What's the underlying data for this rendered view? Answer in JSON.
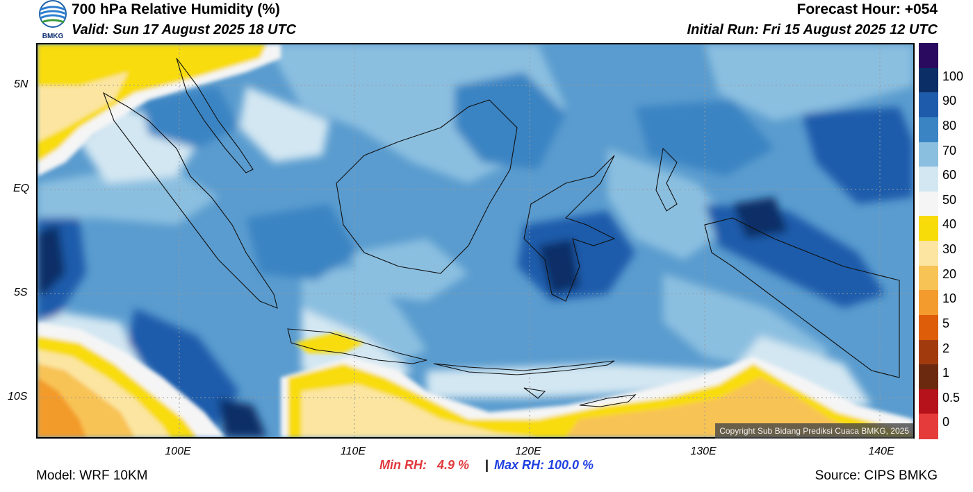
{
  "header": {
    "title": "700 hPa Relative Humidity (%)",
    "valid": "Valid: Sun 17 August 2025 18 UTC",
    "forecast_hour": "Forecast Hour: +054",
    "initial_run": "Initial Run: Fri 15 August 2025 12 UTC"
  },
  "logo": {
    "text": "BMKG",
    "icon": "bmkg-logo-icon"
  },
  "map": {
    "lat_labels": [
      "5N",
      "EQ",
      "5S",
      "10S"
    ],
    "lon_labels": [
      "100E",
      "110E",
      "120E",
      "130E",
      "140E"
    ],
    "copyright": "Copyright Sub Bidang Prediksi Cuaca BMKG, 2025"
  },
  "stats": {
    "min_rh": "Min RH:   4.9 %",
    "separator": "|",
    "max_rh": "Max RH: 100.0 %"
  },
  "footer": {
    "model": "Model: WRF 10KM",
    "source": "Source: CIPS BMKG"
  },
  "colorbar": {
    "labels": [
      "100",
      "90",
      "80",
      "70",
      "60",
      "50",
      "40",
      "30",
      "20",
      "10",
      "5",
      "2",
      "1",
      "0.5",
      "0"
    ],
    "colors": [
      "#2a0a5e",
      "#0b2e66",
      "#1f5bab",
      "#3a84c3",
      "#8bbfe0",
      "#d3e7f2",
      "#f5f5f5",
      "#f8dc0a",
      "#fbe5a0",
      "#f8c355",
      "#f39b2c",
      "#dd5d09",
      "#a13b0e",
      "#6b2a10",
      "#b5121b",
      "#e53b3b"
    ]
  }
}
